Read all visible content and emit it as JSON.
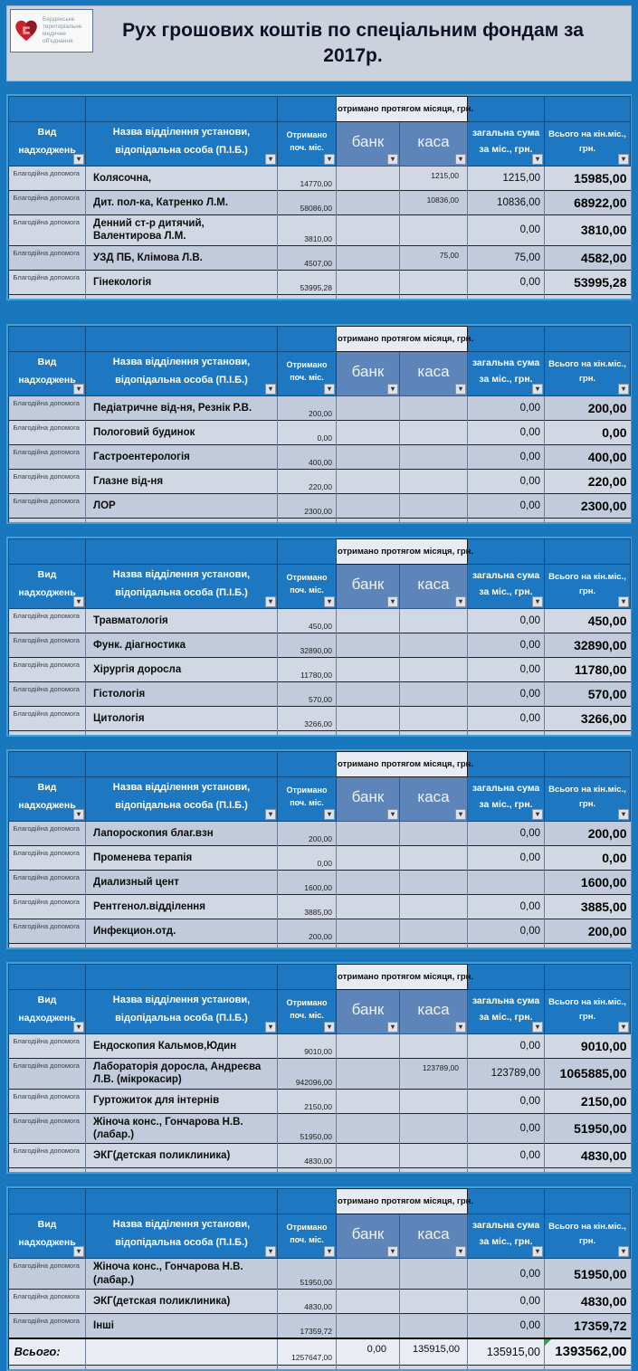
{
  "banner": {
    "logo_lines": [
      "Бердянське",
      "територіальне",
      "медичне",
      "об'єднання"
    ],
    "title": "Рух грошових коштів по спеціальним фондам за 2017р."
  },
  "columns": {
    "type": "Вид надходжень",
    "name": "Назва відділення установи, відопідальна особа (П.І.Б.)",
    "received_start": "Отримано поч. міс.",
    "received_month_span": "отримано протягом місяця, грн.",
    "bank": "банк",
    "kasa": "каса",
    "month_total": "загальна сума за міс., грн.",
    "end_total": "Всього на кін.міс., грн."
  },
  "icons": {
    "filter_arrow": "▾"
  },
  "colors": {
    "page_bg": "#1877bd",
    "section_border": "#41a0d6",
    "header_blue": "#1d78c1",
    "bank_kasa_blue": "#5e85ba",
    "band_light": "#e7ebf3",
    "row_light": "#d2d8e3",
    "row_dark": "#c2cbdb",
    "total_row_bg": "#e9edf3",
    "logo_red": "#c5242e"
  },
  "tables": [
    {
      "rows": [
        {
          "type": "Благодійна допомога",
          "name": "Колясочна,",
          "start": "14770,00",
          "bank": "",
          "kasa": "1215,00",
          "month": "1215,00",
          "end": "15985,00"
        },
        {
          "type": "Благодійна допомога",
          "name": "Дит. пол-ка, Катренко Л.М.",
          "start": "58086,00",
          "bank": "",
          "kasa": "10836,00",
          "month": "10836,00",
          "end": "68922,00"
        },
        {
          "type": "Благодійна допомога",
          "name": "Денний ст-р дитячий, Валентирова Л.М.",
          "start": "3810,00",
          "bank": "",
          "kasa": "",
          "month": "0,00",
          "end": "3810,00"
        },
        {
          "type": "Благодійна допомога",
          "name": "УЗД ПБ, Клімова Л.В.",
          "start": "4507,00",
          "bank": "",
          "kasa": "75,00",
          "month": "75,00",
          "end": "4582,00"
        },
        {
          "type": "Благодійна допомога",
          "name": "Гінекологія",
          "start": "53995,28",
          "bank": "",
          "kasa": "",
          "month": "0,00",
          "end": "53995,28"
        }
      ]
    },
    {
      "rows": [
        {
          "type": "Благодійна допомога",
          "name": "Педіатричне від-ня, Резнік Р.В.",
          "start": "200,00",
          "bank": "",
          "kasa": "",
          "month": "0,00",
          "end": "200,00"
        },
        {
          "type": "Благодійна допомога",
          "name": "Пологовий будинок",
          "start": "0,00",
          "bank": "",
          "kasa": "",
          "month": "0,00",
          "end": "0,00"
        },
        {
          "type": "Благодійна допомога",
          "name": "Гастроентерологія",
          "start": "400,00",
          "bank": "",
          "kasa": "",
          "month": "0,00",
          "end": "400,00"
        },
        {
          "type": "Благодійна допомога",
          "name": "Глазне від-ня",
          "start": "220,00",
          "bank": "",
          "kasa": "",
          "month": "0,00",
          "end": "220,00"
        },
        {
          "type": "Благодійна допомога",
          "name": "ЛОР",
          "start": "2300,00",
          "bank": "",
          "kasa": "",
          "month": "0,00",
          "end": "2300,00"
        }
      ]
    },
    {
      "rows": [
        {
          "type": "Благодійна допомога",
          "name": "Травматологія",
          "start": "450,00",
          "bank": "",
          "kasa": "",
          "month": "0,00",
          "end": "450,00"
        },
        {
          "type": "Благодійна допомога",
          "name": "Функ. діагностика",
          "start": "32890,00",
          "bank": "",
          "kasa": "",
          "month": "0,00",
          "end": "32890,00"
        },
        {
          "type": "Благодійна допомога",
          "name": "Хірургія доросла",
          "start": "11780,00",
          "bank": "",
          "kasa": "",
          "month": "0,00",
          "end": "11780,00"
        },
        {
          "type": "Благодійна допомога",
          "name": "Гістологія",
          "start": "570,00",
          "bank": "",
          "kasa": "",
          "month": "0,00",
          "end": "570,00"
        },
        {
          "type": "Благодійна допомога",
          "name": "Цитологія",
          "start": "3266,00",
          "bank": "",
          "kasa": "",
          "month": "0,00",
          "end": "3266,00"
        }
      ]
    },
    {
      "rows": [
        {
          "type": "Благодійна допомога",
          "name": "Лапороскопия  благ.взн",
          "start": "200,00",
          "bank": "",
          "kasa": "",
          "month": "0,00",
          "end": "200,00"
        },
        {
          "type": "Благодійна допомога",
          "name": "Променева терапія",
          "start": "0,00",
          "bank": "",
          "kasa": "",
          "month": "0,00",
          "end": "0,00"
        },
        {
          "type": "Благодійна допомога",
          "name": "Диализный цент",
          "start": "1600,00",
          "bank": "",
          "kasa": "",
          "month": "",
          "end": "1600,00"
        },
        {
          "type": "Благодійна допомога",
          "name": "Рентгенол.відділення",
          "start": "3885,00",
          "bank": "",
          "kasa": "",
          "month": "0,00",
          "end": "3885,00"
        },
        {
          "type": "Благодійна допомога",
          "name": "Инфекцион.отд.",
          "start": "200,00",
          "bank": "",
          "kasa": "",
          "month": "0,00",
          "end": "200,00"
        }
      ]
    },
    {
      "rows": [
        {
          "type": "Благодійна допомога",
          "name": "Ендоскопия Кальмов,Юдин",
          "start": "9010,00",
          "bank": "",
          "kasa": "",
          "month": "0,00",
          "end": "9010,00"
        },
        {
          "type": "Благодійна допомога",
          "name": "Лабораторія доросла, Андреєва Л.В. (мікрокасир)",
          "start": "942096,00",
          "bank": "",
          "kasa": "123789,00",
          "month": "123789,00",
          "end": "1065885,00"
        },
        {
          "type": "Благодійна допомога",
          "name": "Гуртожиток для інтернів",
          "start": "2150,00",
          "bank": "",
          "kasa": "",
          "month": "0,00",
          "end": "2150,00"
        },
        {
          "type": "Благодійна допомога",
          "name": "Жіноча конс., Гончарова Н.В.(лабар.)",
          "start": "51950,00",
          "bank": "",
          "kasa": "",
          "month": "0,00",
          "end": "51950,00"
        },
        {
          "type": "Благодійна допомога",
          "name": "ЭКГ(детская поликлиника)",
          "start": "4830,00",
          "bank": "",
          "kasa": "",
          "month": "0,00",
          "end": "4830,00"
        }
      ]
    },
    {
      "has_total": true,
      "rows": [
        {
          "type": "Благодійна допомога",
          "name": "Жіноча конс., Гончарова Н.В.(лабар.)",
          "start": "51950,00",
          "bank": "",
          "kasa": "",
          "month": "0,00",
          "end": "51950,00"
        },
        {
          "type": "Благодійна допомога",
          "name": "ЭКГ(детская поликлиника)",
          "start": "4830,00",
          "bank": "",
          "kasa": "",
          "month": "0,00",
          "end": "4830,00"
        },
        {
          "type": "Благодійна допомога",
          "name": "Інші",
          "start": "17359,72",
          "bank": "",
          "kasa": "",
          "month": "0,00",
          "end": "17359,72"
        }
      ]
    }
  ],
  "totals": {
    "label": "Всього:",
    "start": "1257647,00",
    "bank": "0,00",
    "kasa": "135915,00",
    "month": "135915,00",
    "end": "1393562,00"
  }
}
